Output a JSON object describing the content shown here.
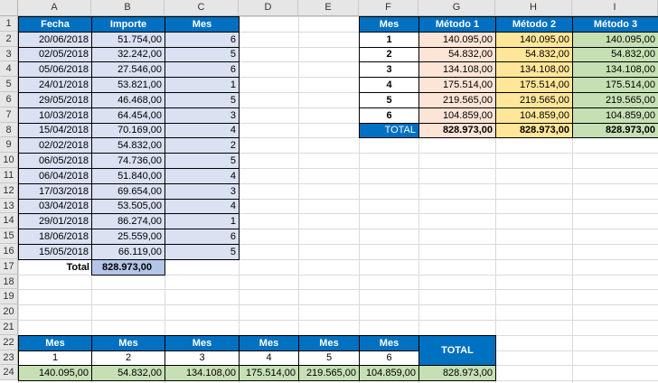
{
  "columns": [
    "A",
    "B",
    "C",
    "D",
    "E",
    "F",
    "G",
    "H",
    "I"
  ],
  "rows": [
    "1",
    "2",
    "3",
    "4",
    "5",
    "6",
    "7",
    "8",
    "9",
    "10",
    "11",
    "12",
    "13",
    "14",
    "15",
    "16",
    "17",
    "18",
    "19",
    "20",
    "21",
    "22",
    "23",
    "24"
  ],
  "left_table": {
    "headers": [
      "Fecha",
      "Importe",
      "Mes"
    ],
    "rows": [
      [
        "20/06/2018",
        "51.754,00",
        "6"
      ],
      [
        "02/05/2018",
        "32.242,00",
        "5"
      ],
      [
        "05/06/2018",
        "27.546,00",
        "6"
      ],
      [
        "24/01/2018",
        "53.821,00",
        "1"
      ],
      [
        "29/05/2018",
        "46.468,00",
        "5"
      ],
      [
        "10/03/2018",
        "64.454,00",
        "3"
      ],
      [
        "15/04/2018",
        "70.169,00",
        "4"
      ],
      [
        "02/02/2018",
        "54.832,00",
        "2"
      ],
      [
        "06/05/2018",
        "74.736,00",
        "5"
      ],
      [
        "06/04/2018",
        "51.840,00",
        "4"
      ],
      [
        "17/03/2018",
        "69.654,00",
        "3"
      ],
      [
        "03/04/2018",
        "53.505,00",
        "4"
      ],
      [
        "29/01/2018",
        "86.274,00",
        "1"
      ],
      [
        "18/06/2018",
        "25.559,00",
        "6"
      ],
      [
        "15/05/2018",
        "66.119,00",
        "5"
      ]
    ],
    "total_label": "Total",
    "total_value": "828.973,00"
  },
  "right_table": {
    "headers": [
      "Mes",
      "Método 1",
      "Método 2",
      "Método 3"
    ],
    "rows": [
      [
        "1",
        "140.095,00",
        "140.095,00",
        "140.095,00"
      ],
      [
        "2",
        "54.832,00",
        "54.832,00",
        "54.832,00"
      ],
      [
        "3",
        "134.108,00",
        "134.108,00",
        "134.108,00"
      ],
      [
        "4",
        "175.514,00",
        "175.514,00",
        "175.514,00"
      ],
      [
        "5",
        "219.565,00",
        "219.565,00",
        "219.565,00"
      ],
      [
        "6",
        "104.859,00",
        "104.859,00",
        "104.859,00"
      ]
    ],
    "total": [
      "TOTAL",
      "828.973,00",
      "828.973,00",
      "828.973,00"
    ]
  },
  "bottom_table": {
    "headers": [
      "Mes",
      "Mes",
      "Mes",
      "Mes",
      "Mes",
      "Mes"
    ],
    "months": [
      "1",
      "2",
      "3",
      "4",
      "5",
      "6"
    ],
    "values": [
      "140.095,00",
      "54.832,00",
      "134.108,00",
      "175.514,00",
      "219.565,00",
      "104.859,00"
    ],
    "total_label": "TOTAL",
    "total_value": "828.973,00"
  },
  "colors": {
    "header_blue": "#0070c0",
    "light_blue": "#d9e1f2",
    "peach": "#fce4d6",
    "yellow": "#ffe699",
    "green": "#c6e0b4"
  }
}
